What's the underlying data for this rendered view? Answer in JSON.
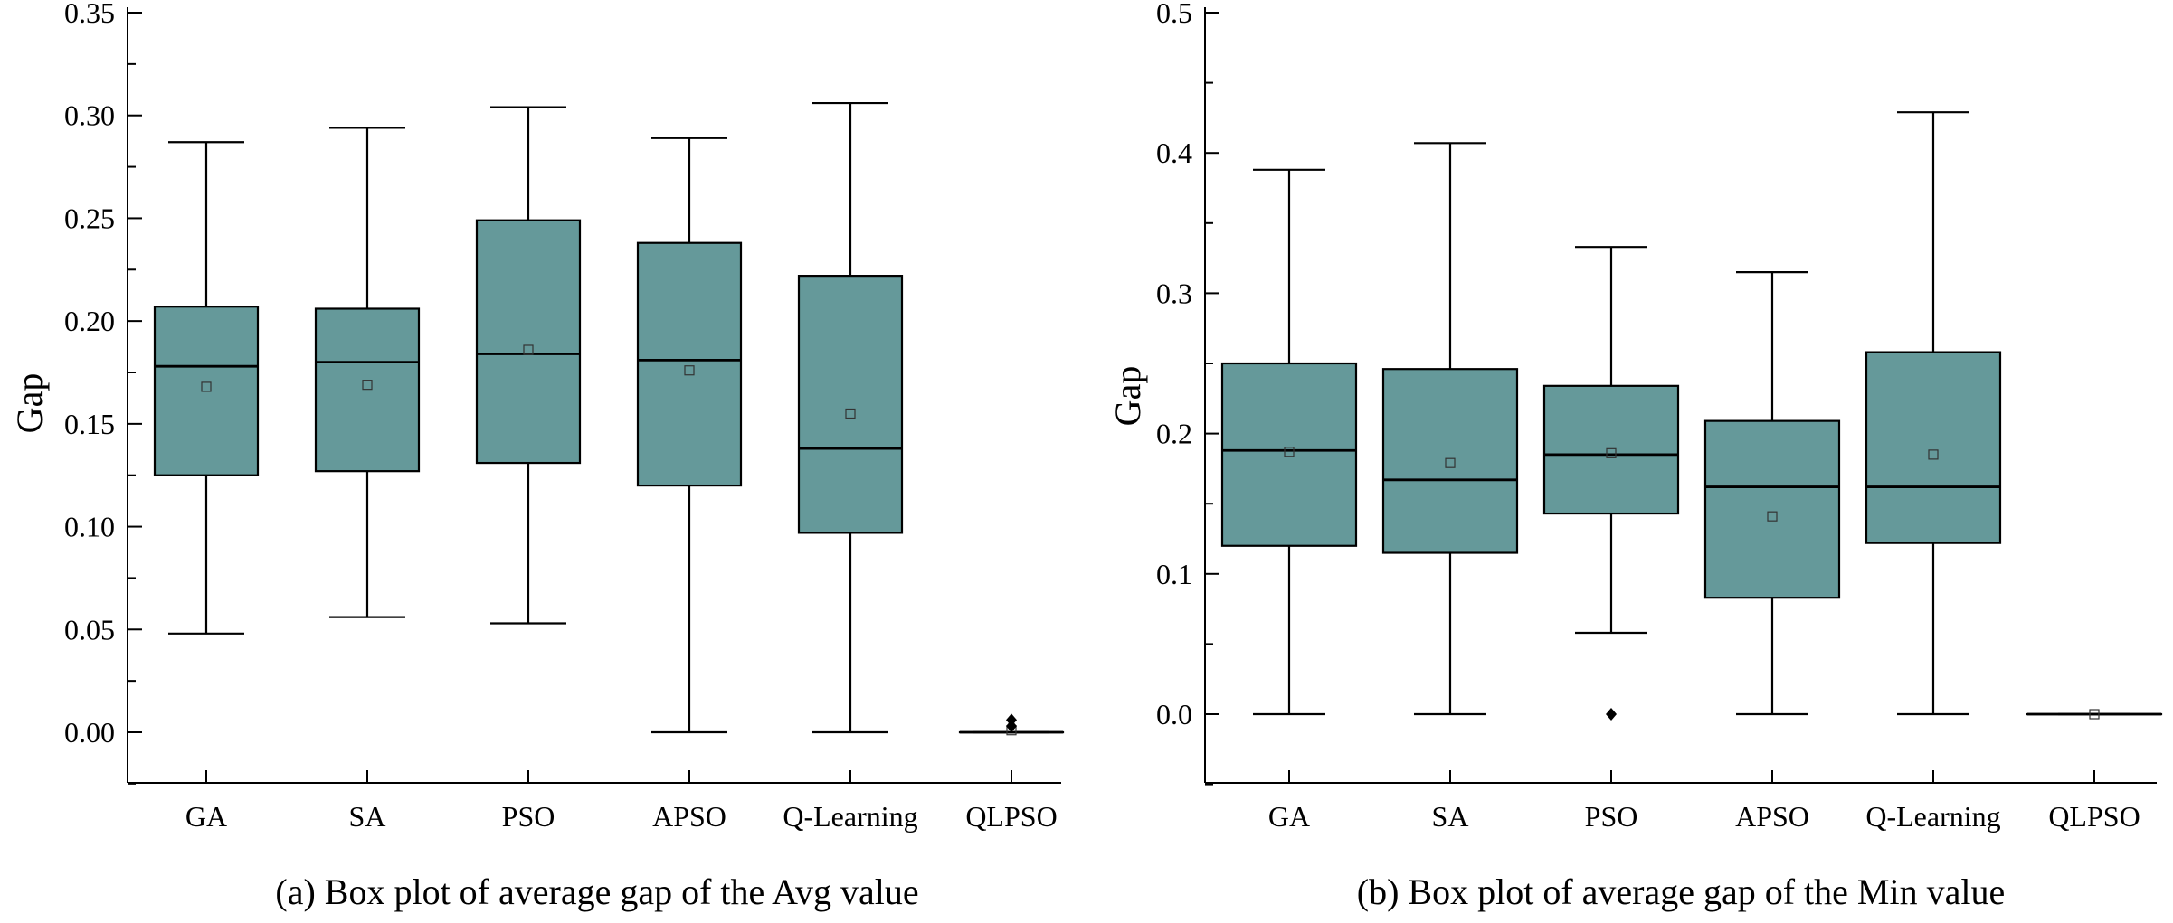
{
  "colors": {
    "box_fill": "#65999A",
    "stroke": "#000000"
  },
  "chart_data": [
    {
      "type": "box",
      "caption": "(a) Box plot of average gap of the Avg value",
      "ylabel": "Gap",
      "xlabel": "",
      "ylim": [
        -0.025,
        0.35
      ],
      "yticks": [
        0.0,
        0.05,
        0.1,
        0.15,
        0.2,
        0.25,
        0.3,
        0.35
      ],
      "ytick_labels": [
        "0.00",
        "0.05",
        "0.10",
        "0.15",
        "0.20",
        "0.25",
        "0.30",
        "0.35"
      ],
      "minor_yticks": true,
      "categories": [
        "GA",
        "SA",
        "PSO",
        "APSO",
        "Q-Learning",
        "QLPSO"
      ],
      "boxes": [
        {
          "whisker_low": 0.048,
          "q1": 0.125,
          "median": 0.178,
          "q3": 0.207,
          "whisker_high": 0.287,
          "mean": 0.168,
          "outliers": []
        },
        {
          "whisker_low": 0.056,
          "q1": 0.127,
          "median": 0.18,
          "q3": 0.206,
          "whisker_high": 0.294,
          "mean": 0.169,
          "outliers": []
        },
        {
          "whisker_low": 0.053,
          "q1": 0.131,
          "median": 0.184,
          "q3": 0.249,
          "whisker_high": 0.304,
          "mean": 0.186,
          "outliers": []
        },
        {
          "whisker_low": 0.0,
          "q1": 0.12,
          "median": 0.181,
          "q3": 0.238,
          "whisker_high": 0.289,
          "mean": 0.176,
          "outliers": []
        },
        {
          "whisker_low": 0.0,
          "q1": 0.097,
          "median": 0.138,
          "q3": 0.222,
          "whisker_high": 0.306,
          "mean": 0.155,
          "outliers": []
        },
        {
          "whisker_low": 0.0,
          "q1": 0.0,
          "median": 0.0,
          "q3": 0.0,
          "whisker_high": 0.0,
          "mean": 0.001,
          "outliers": [
            0.003,
            0.006
          ]
        }
      ]
    },
    {
      "type": "box",
      "caption": "(b) Box plot of average gap of the Min value",
      "ylabel": "Gap",
      "xlabel": "",
      "ylim": [
        -0.05,
        0.5
      ],
      "yticks": [
        0.0,
        0.1,
        0.2,
        0.3,
        0.4,
        0.5
      ],
      "ytick_labels": [
        "0.0",
        "0.1",
        "0.2",
        "0.3",
        "0.4",
        "0.5"
      ],
      "minor_yticks": true,
      "categories": [
        "GA",
        "SA",
        "PSO",
        "APSO",
        "Q-Learning",
        "QLPSO"
      ],
      "boxes": [
        {
          "whisker_low": 0.0,
          "q1": 0.12,
          "median": 0.188,
          "q3": 0.25,
          "whisker_high": 0.388,
          "mean": 0.187,
          "outliers": []
        },
        {
          "whisker_low": 0.0,
          "q1": 0.115,
          "median": 0.167,
          "q3": 0.246,
          "whisker_high": 0.407,
          "mean": 0.179,
          "outliers": []
        },
        {
          "whisker_low": 0.058,
          "q1": 0.143,
          "median": 0.185,
          "q3": 0.234,
          "whisker_high": 0.333,
          "mean": 0.186,
          "outliers": [
            0.0
          ]
        },
        {
          "whisker_low": 0.0,
          "q1": 0.083,
          "median": 0.162,
          "q3": 0.209,
          "whisker_high": 0.315,
          "mean": 0.141,
          "outliers": []
        },
        {
          "whisker_low": 0.0,
          "q1": 0.122,
          "median": 0.162,
          "q3": 0.258,
          "whisker_high": 0.429,
          "mean": 0.185,
          "outliers": []
        },
        {
          "whisker_low": 0.0,
          "q1": 0.0,
          "median": 0.0,
          "q3": 0.0,
          "whisker_high": 0.0,
          "mean": 0.0,
          "outliers": []
        }
      ]
    }
  ]
}
